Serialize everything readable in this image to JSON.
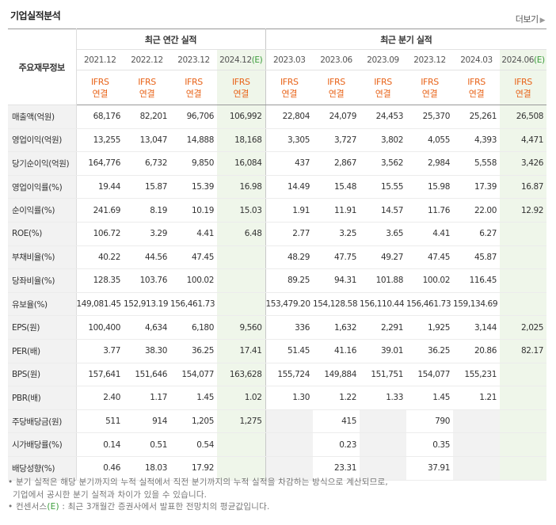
{
  "title": "기업실적분석",
  "more_label": "더보기",
  "header": {
    "corner": "주요재무정보",
    "annual_group": "최근 연간 실적",
    "quarter_group": "최근 분기 실적",
    "periods": [
      "2021.12",
      "2022.12",
      "2023.12",
      "2024.12",
      "2023.03",
      "2023.06",
      "2023.09",
      "2023.12",
      "2024.03",
      "2024.06"
    ],
    "estimate_mark": "(E)",
    "ifrs_label": "IFRS",
    "consol_label": "연결"
  },
  "rows": [
    {
      "label": "매출액(억원)",
      "values": [
        "68,176",
        "82,201",
        "96,706",
        "106,992",
        "22,804",
        "24,079",
        "24,453",
        "25,370",
        "25,261",
        "26,508"
      ]
    },
    {
      "label": "영업이익(억원)",
      "values": [
        "13,255",
        "13,047",
        "14,888",
        "18,168",
        "3,305",
        "3,727",
        "3,802",
        "4,055",
        "4,393",
        "4,471"
      ]
    },
    {
      "label": "당기순이익(억원)",
      "values": [
        "164,776",
        "6,732",
        "9,850",
        "16,084",
        "437",
        "2,867",
        "3,562",
        "2,984",
        "5,558",
        "3,426"
      ]
    },
    {
      "label": "영업이익률(%)",
      "values": [
        "19.44",
        "15.87",
        "15.39",
        "16.98",
        "14.49",
        "15.48",
        "15.55",
        "15.98",
        "17.39",
        "16.87"
      ]
    },
    {
      "label": "순이익률(%)",
      "values": [
        "241.69",
        "8.19",
        "10.19",
        "15.03",
        "1.91",
        "11.91",
        "14.57",
        "11.76",
        "22.00",
        "12.92"
      ]
    },
    {
      "label": "ROE(%)",
      "values": [
        "106.72",
        "3.29",
        "4.41",
        "6.48",
        "2.77",
        "3.25",
        "3.65",
        "4.41",
        "6.27",
        ""
      ]
    },
    {
      "label": "부채비율(%)",
      "values": [
        "40.22",
        "44.56",
        "47.45",
        "",
        "48.29",
        "47.75",
        "49.27",
        "47.45",
        "45.87",
        ""
      ]
    },
    {
      "label": "당좌비율(%)",
      "values": [
        "128.35",
        "103.76",
        "100.02",
        "",
        "89.25",
        "94.31",
        "101.88",
        "100.02",
        "116.45",
        ""
      ]
    },
    {
      "label": "유보율(%)",
      "values": [
        "149,081.45",
        "152,913.19",
        "156,461.73",
        "",
        "153,479.20",
        "154,128.58",
        "156,110.44",
        "156,461.73",
        "159,134.69",
        ""
      ]
    },
    {
      "label": "EPS(원)",
      "values": [
        "100,400",
        "4,634",
        "6,180",
        "9,560",
        "336",
        "1,632",
        "2,291",
        "1,925",
        "3,144",
        "2,025"
      ]
    },
    {
      "label": "PER(배)",
      "values": [
        "3.77",
        "38.30",
        "36.25",
        "17.41",
        "51.45",
        "41.16",
        "39.01",
        "36.25",
        "20.86",
        "82.17"
      ]
    },
    {
      "label": "BPS(원)",
      "values": [
        "157,641",
        "151,646",
        "154,077",
        "163,628",
        "155,724",
        "149,884",
        "151,751",
        "154,077",
        "155,231",
        ""
      ]
    },
    {
      "label": "PBR(배)",
      "values": [
        "2.40",
        "1.17",
        "1.45",
        "1.02",
        "1.30",
        "1.22",
        "1.33",
        "1.45",
        "1.21",
        ""
      ]
    },
    {
      "label": "주당배당금(원)",
      "values": [
        "511",
        "914",
        "1,205",
        "1,275",
        "",
        "415",
        "",
        "790",
        "",
        ""
      ]
    },
    {
      "label": "시가배당률(%)",
      "values": [
        "0.14",
        "0.51",
        "0.54",
        "",
        "",
        "0.23",
        "",
        "0.35",
        "",
        ""
      ]
    },
    {
      "label": "배당성향(%)",
      "values": [
        "0.46",
        "18.03",
        "17.92",
        "",
        "",
        "23.31",
        "",
        "37.91",
        "",
        ""
      ]
    }
  ],
  "notes": {
    "line1": "분기 실적은 해당 분기까지의 누적 실적에서 직전 분기까지의 누적 실적을 차감하는 방식으로 계산되므로,",
    "line2": "기업에서 공시한 분기 실적과 차이가 있을 수 있습니다.",
    "line3_pre": "컨센서스",
    "line3_mark": "(E)",
    "line3_post": ": 최근 3개월간 증권사에서 발표한 전망치의 평균값입니다."
  },
  "colors": {
    "accent_orange": "#e8641a",
    "estimate_green": "#3a9c3a",
    "estimate_bg": "#eff6ea",
    "rowhead_bg": "#f2f2f2"
  }
}
